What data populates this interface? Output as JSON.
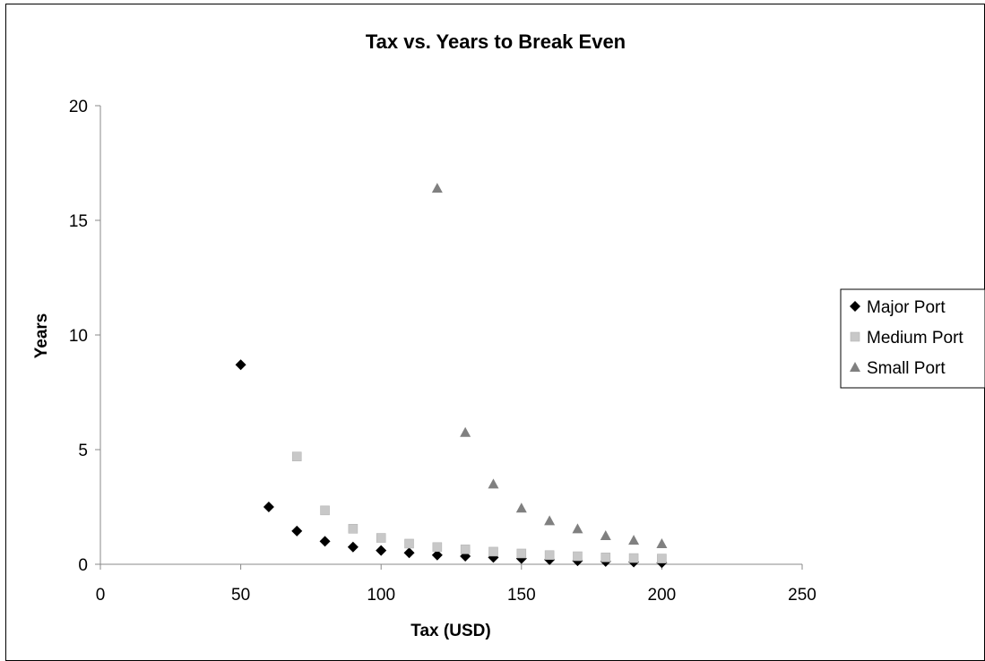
{
  "chart_data": {
    "type": "scatter",
    "title": "Tax vs. Years to Break Even",
    "xlabel": "Tax (USD)",
    "ylabel": "Years",
    "xlim": [
      0,
      250
    ],
    "ylim": [
      0,
      20
    ],
    "xticks": [
      0,
      50,
      100,
      150,
      200,
      250
    ],
    "yticks": [
      0,
      5,
      10,
      15,
      20
    ],
    "grid": false,
    "legend_position": "right",
    "series": [
      {
        "name": "Major Port",
        "marker": "diamond",
        "color": "#000000",
        "x": [
          50,
          60,
          70,
          80,
          90,
          100,
          110,
          120,
          130,
          140,
          150,
          160,
          170,
          180,
          190,
          200
        ],
        "y": [
          8.7,
          2.5,
          1.45,
          1.0,
          0.75,
          0.6,
          0.5,
          0.4,
          0.35,
          0.3,
          0.25,
          0.2,
          0.15,
          0.12,
          0.1,
          0.07
        ]
      },
      {
        "name": "Medium Port",
        "marker": "square",
        "color": "#c8c8c8",
        "x": [
          70,
          80,
          90,
          100,
          110,
          120,
          130,
          140,
          150,
          160,
          170,
          180,
          190,
          200
        ],
        "y": [
          4.7,
          2.35,
          1.55,
          1.15,
          0.9,
          0.75,
          0.65,
          0.55,
          0.47,
          0.4,
          0.35,
          0.3,
          0.27,
          0.25
        ]
      },
      {
        "name": "Small Port",
        "marker": "triangle",
        "color": "#808080",
        "x": [
          120,
          130,
          140,
          150,
          160,
          170,
          180,
          190,
          200
        ],
        "y": [
          16.4,
          5.75,
          3.5,
          2.45,
          1.9,
          1.55,
          1.25,
          1.05,
          0.9
        ]
      }
    ]
  }
}
